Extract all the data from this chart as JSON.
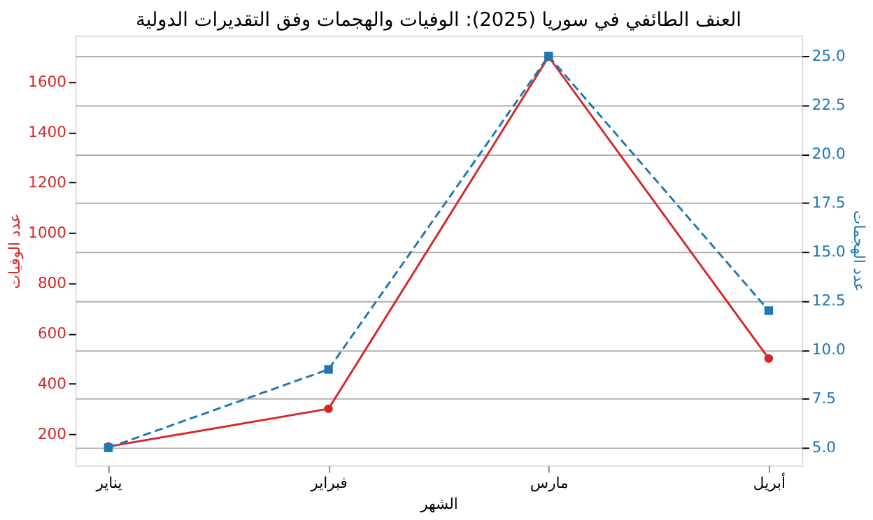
{
  "chart_data": {
    "type": "line",
    "title": "العنف الطائفي في سوريا (2025): الوفيات والهجمات وفق التقديرات الدولية",
    "xlabel": "الشهر",
    "ylabel": "عدد الوفيات",
    "y2label": "عدد الهجمات",
    "categories": [
      "يناير",
      "فبراير",
      "مارس",
      "أبريل"
    ],
    "series": [
      {
        "color": "#d62728",
        "values": [
          150,
          300,
          1700,
          500
        ],
        "marker": "circle",
        "line_style": "solid"
      },
      {
        "color": "#1f77b4",
        "values": [
          5,
          9,
          25,
          12
        ],
        "marker": "square",
        "line_style": "dashed",
        "axis": "y2"
      }
    ],
    "ylim": [
      75,
      1785
    ],
    "yticks": [
      200,
      400,
      600,
      800,
      1000,
      1200,
      1400,
      1600
    ],
    "y2lim": [
      4.1,
      26.05
    ],
    "y2ticks": [
      {
        "value": 5,
        "label": "5.0"
      },
      {
        "value": 7.5,
        "label": "7.5"
      },
      {
        "value": 10,
        "label": "10.0"
      },
      {
        "value": 12.5,
        "label": "12.5"
      },
      {
        "value": 15,
        "label": "15.0"
      },
      {
        "value": 17.5,
        "label": "17.5"
      },
      {
        "value": 20,
        "label": "20.0"
      },
      {
        "value": 22.5,
        "label": "22.5"
      },
      {
        "value": 25,
        "label": "25.0"
      }
    ],
    "grid": "y"
  }
}
